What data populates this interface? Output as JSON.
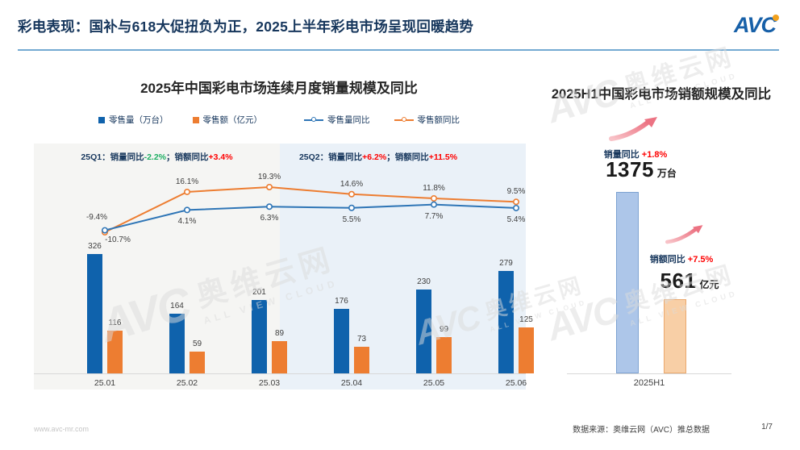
{
  "header": {
    "title": "彩电表现：国补与618大促扭负为正，2025上半年彩电市场呈现回暖趋势",
    "logo_text": "AVC"
  },
  "colors": {
    "bar_volume_blue": "#0f62ac",
    "bar_value_orange": "#ed7d31",
    "line_volume_blue": "#2e75b6",
    "line_value_orange": "#ed7d31",
    "h1_volume_bar_fill": "#adc6e9",
    "h1_volume_bar_border": "#7da2d1",
    "h1_value_bar_fill": "#f8cfa6",
    "h1_value_bar_border": "#eba96e",
    "positive_red": "#fe0000",
    "negative_green": "#1faf64",
    "header_navy": "#16365c",
    "divider_blue": "#74aad2"
  },
  "chart_data": [
    {
      "type": "bar+line",
      "title": "2025年中国彩电市场连续月度销量规模及同比",
      "categories": [
        "25.01",
        "25.02",
        "25.03",
        "25.04",
        "25.05",
        "25.06"
      ],
      "series": [
        {
          "name": "零售量（万台）",
          "type": "bar",
          "color": "#0f62ac",
          "values": [
            326,
            164,
            201,
            176,
            230,
            279
          ]
        },
        {
          "name": "零售额（亿元）",
          "type": "bar",
          "color": "#ed7d31",
          "values": [
            116,
            59,
            89,
            73,
            99,
            125
          ]
        },
        {
          "name": "零售量同比",
          "type": "line",
          "color": "#2e75b6",
          "values_pct": [
            -9.4,
            4.1,
            6.3,
            5.5,
            7.7,
            5.4
          ]
        },
        {
          "name": "零售额同比",
          "type": "line",
          "color": "#ed7d31",
          "values_pct": [
            -10.7,
            16.1,
            19.3,
            14.6,
            11.8,
            9.5
          ]
        }
      ],
      "quarter_notes": [
        {
          "label": "25Q1：销量同比",
          "v1": "-2.2%",
          "sep": "；销额同比",
          "v2": "+3.4%"
        },
        {
          "label": "25Q2：销量同比",
          "v1": "+6.2%",
          "sep": "；销额同比",
          "v2": "+11.5%"
        }
      ],
      "layout_hints": {
        "bar_ylim": [
          0,
          360
        ],
        "line_ylim_pct": [
          -15,
          25
        ],
        "grid": false,
        "legend_position": "top",
        "quarter_bg": [
          "#f5f5f3",
          "#eaf1f8"
        ]
      }
    },
    {
      "type": "bar",
      "title": "2025H1中国彩电市场销额规模及同比",
      "categories": [
        "2025H1"
      ],
      "series": [
        {
          "name": "销量",
          "value": 1375,
          "unit": "万台",
          "yoy_label": "销量同比",
          "yoy": "+1.8%",
          "fill": "#adc6e9",
          "border": "#7da2d1"
        },
        {
          "name": "销额",
          "value": 561,
          "unit": "亿元",
          "yoy_label": "销额同比",
          "yoy": "+7.5%",
          "fill": "#f8cfa6",
          "border": "#eba96e"
        }
      ],
      "layout_hints": {
        "ylim": [
          0,
          2250
        ],
        "grid": false
      }
    }
  ],
  "watermark": {
    "logo": "AVC",
    "cn": "奥维云网",
    "en": "ALL VIEW CLOUD"
  },
  "footer": {
    "website": "www.avc-mr.com",
    "source": "数据来源：奥维云网（AVC）推总数据",
    "page": "1/7"
  }
}
